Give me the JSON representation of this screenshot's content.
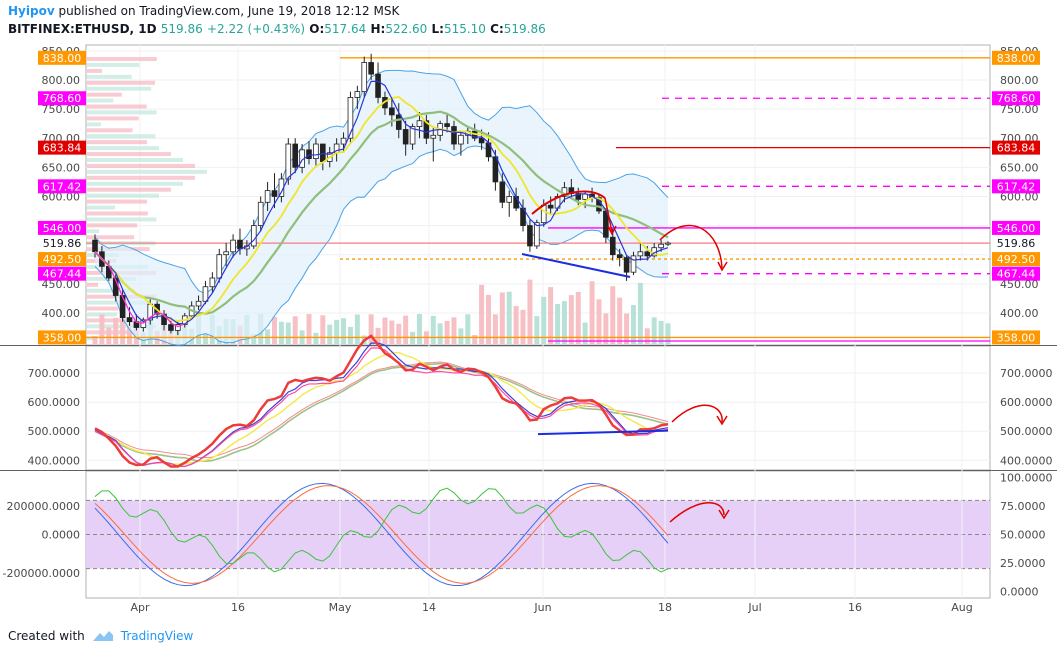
{
  "header": {
    "author": "Hyipov",
    "published": " published on TradingView.com, June 19, 2018 12:12 MSK",
    "symbol": "BITFINEX:ETHUSD, 1D",
    "last": "519.86",
    "change": "+2.22 (+0.43%)",
    "o_label": "O:",
    "o": "517.64",
    "h_label": "H:",
    "h": "522.60",
    "l_label": "L:",
    "l": "515.10",
    "c_label": "C:",
    "c": "519.86"
  },
  "footer": {
    "created_with": "Created with",
    "brand": "TradingView"
  },
  "colors": {
    "orange": "#ff9800",
    "magenta": "#ff00ff",
    "red": "#e00000",
    "salmon": "#f77c80",
    "blue": "#1e3cff",
    "green": "#26a69a",
    "panel_bg": "#e7d0f7"
  },
  "x_axis": {
    "labels": [
      "Apr",
      "16",
      "May",
      "14",
      "Jun",
      "18",
      "Jul",
      "16",
      "Aug"
    ]
  },
  "chart_data": [
    {
      "type": "candlestick",
      "title": "",
      "y_ticks": [
        "850.00",
        "800.00",
        "750.00",
        "700.00",
        "650.00",
        "600.00",
        "450.00",
        "400.00"
      ],
      "price_tags": [
        {
          "label": "838.00",
          "color": "orange"
        },
        {
          "label": "768.60",
          "color": "magenta"
        },
        {
          "label": "683.84",
          "color": "red"
        },
        {
          "label": "617.42",
          "color": "magenta"
        },
        {
          "label": "546.00",
          "color": "magenta"
        },
        {
          "label": "519.86",
          "color": "none"
        },
        {
          "label": "492.50",
          "color": "orange"
        },
        {
          "label": "467.44",
          "color": "magenta"
        },
        {
          "label": "358.00",
          "color": "orange"
        }
      ],
      "ylim": [
        345,
        860
      ]
    },
    {
      "type": "line",
      "y_ticks": [
        "700.0000",
        "600.0000",
        "500.0000",
        "400.0000"
      ],
      "ylim": [
        370,
        790
      ]
    },
    {
      "type": "line",
      "left_ticks": [
        "200000.0000",
        "0.0000",
        "-200000.0000"
      ],
      "right_ticks": [
        "100.0000",
        "75.0000",
        "50.0000",
        "25.0000",
        "0.0000"
      ],
      "ylim": [
        -5,
        105
      ]
    }
  ]
}
